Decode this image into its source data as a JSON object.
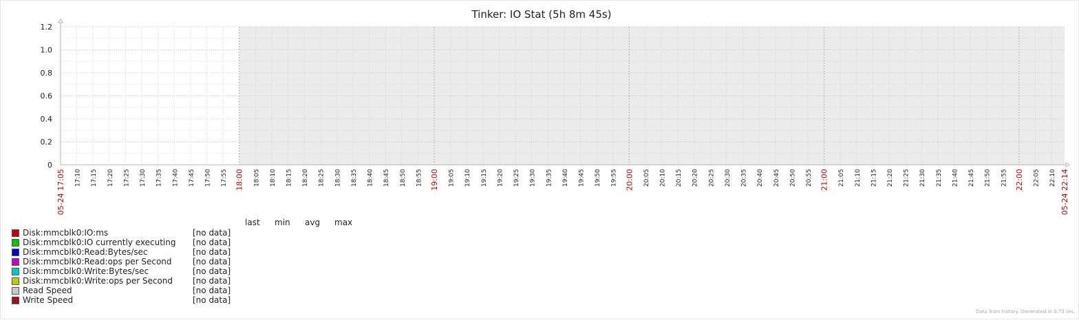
{
  "chart_data": {
    "type": "line",
    "title": "Tinker: IO Stat (5h 8m 45s)",
    "ylim": [
      0,
      1.2
    ],
    "y_ticks": [
      "0",
      "0.2",
      "0.4",
      "0.6",
      "0.8",
      "1.0",
      "1.2"
    ],
    "x_start_label": "05-24 17:05",
    "x_end_label": "05-24 22:14",
    "x_tick_labels": [
      "17:10",
      "17:15",
      "17:20",
      "17:25",
      "17:30",
      "17:35",
      "17:40",
      "17:45",
      "17:50",
      "17:55",
      "18:00",
      "18:05",
      "18:10",
      "18:15",
      "18:20",
      "18:25",
      "18:30",
      "18:35",
      "18:40",
      "18:45",
      "18:50",
      "18:55",
      "19:00",
      "19:05",
      "19:10",
      "19:15",
      "19:20",
      "19:25",
      "19:30",
      "19:35",
      "19:40",
      "19:45",
      "19:50",
      "19:55",
      "20:00",
      "20:05",
      "20:10",
      "20:15",
      "20:20",
      "20:25",
      "20:30",
      "20:35",
      "20:40",
      "20:45",
      "20:50",
      "20:55",
      "21:00",
      "21:05",
      "21:10",
      "21:15",
      "21:20",
      "21:25",
      "21:30",
      "21:35",
      "21:40",
      "21:45",
      "21:50",
      "21:55",
      "22:00",
      "22:05",
      "22:10"
    ],
    "x_major_labels": [
      "18:00",
      "19:00",
      "20:00",
      "21:00",
      "22:00"
    ],
    "shaded_from": "18:00",
    "grid": true,
    "legend_columns": [
      "last",
      "min",
      "avg",
      "max"
    ],
    "series": [
      {
        "name": "Disk:mmcblk0:IO:ms",
        "color": "#C80000",
        "status": "[no data]"
      },
      {
        "name": "Disk:mmcblk0:IO currently executing",
        "color": "#00C800",
        "status": "[no data]"
      },
      {
        "name": "Disk:mmcblk0:Read:Bytes/sec",
        "color": "#0000C8",
        "status": "[no data]"
      },
      {
        "name": "Disk:mmcblk0:Read:ops per Second",
        "color": "#C800C8",
        "status": "[no data]"
      },
      {
        "name": "Disk:mmcblk0:Write:Bytes/sec",
        "color": "#00C8C8",
        "status": "[no data]"
      },
      {
        "name": "Disk:mmcblk0:Write:ops per Second",
        "color": "#C8C800",
        "status": "[no data]"
      },
      {
        "name": "Read Speed",
        "color": "#C8C8C8",
        "status": "[no data]"
      },
      {
        "name": "Write Speed",
        "color": "#A01414",
        "status": "[no data]"
      }
    ]
  },
  "footer": "Data from history. Generated in 0.73 sec."
}
